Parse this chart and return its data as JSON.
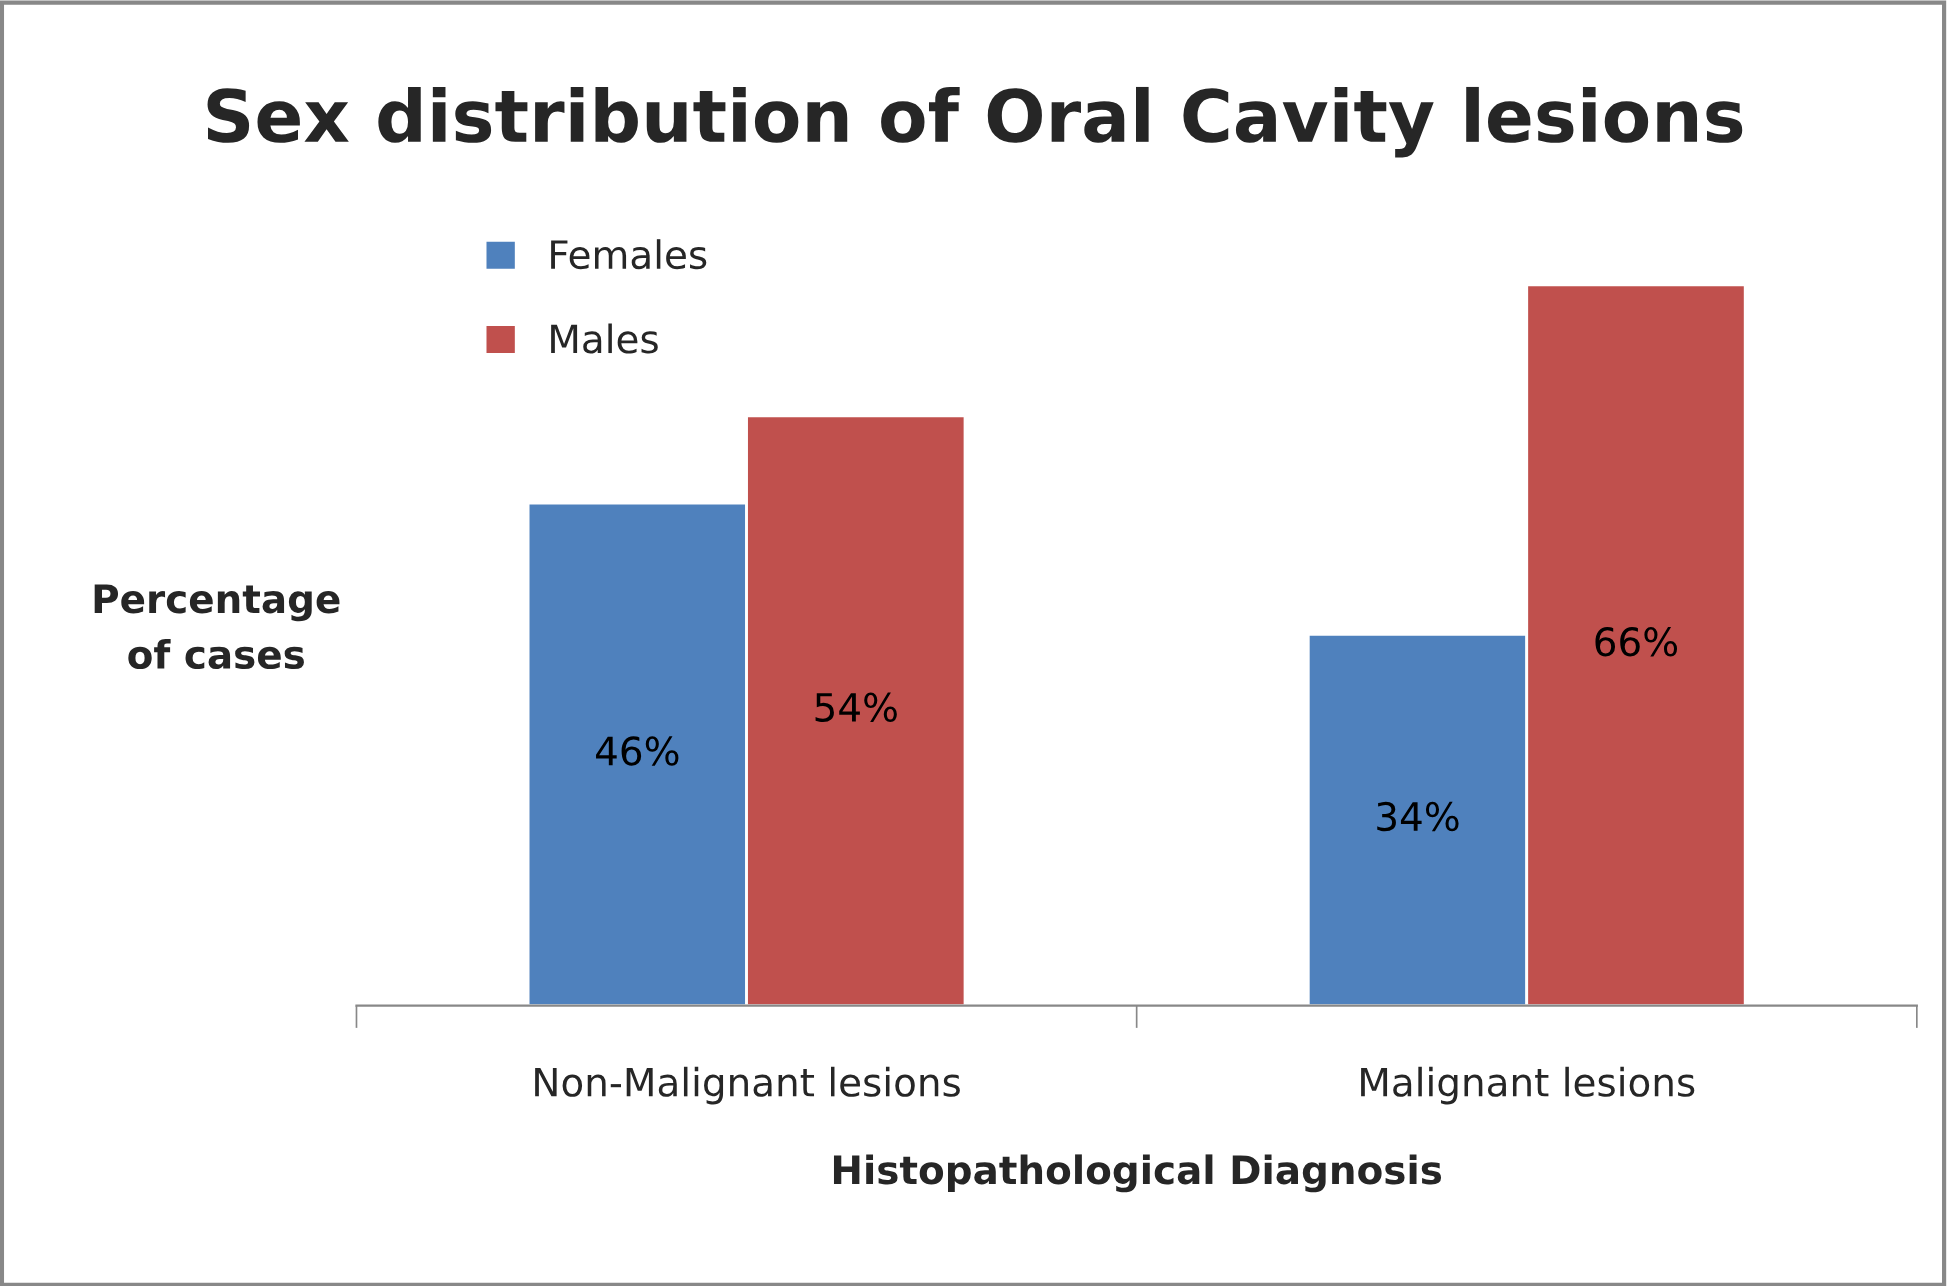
{
  "chart_data": {
    "type": "bar",
    "title": "Sex distribution of Oral Cavity lesions",
    "xlabel": "Histopathological Diagnosis",
    "ylabel": "Percentage of cases",
    "categories": [
      "Non-Malignant lesions",
      "Malignant lesions"
    ],
    "series": [
      {
        "name": "Females",
        "color": "#4f81bd",
        "values": [
          46,
          34
        ],
        "value_labels": [
          "46%",
          "34%"
        ]
      },
      {
        "name": "Males",
        "color": "#c0504d",
        "values": [
          54,
          66
        ],
        "value_labels": [
          "54%",
          "66%"
        ]
      }
    ],
    "tick_labels": "x",
    "legend": "top left",
    "grid": false
  }
}
